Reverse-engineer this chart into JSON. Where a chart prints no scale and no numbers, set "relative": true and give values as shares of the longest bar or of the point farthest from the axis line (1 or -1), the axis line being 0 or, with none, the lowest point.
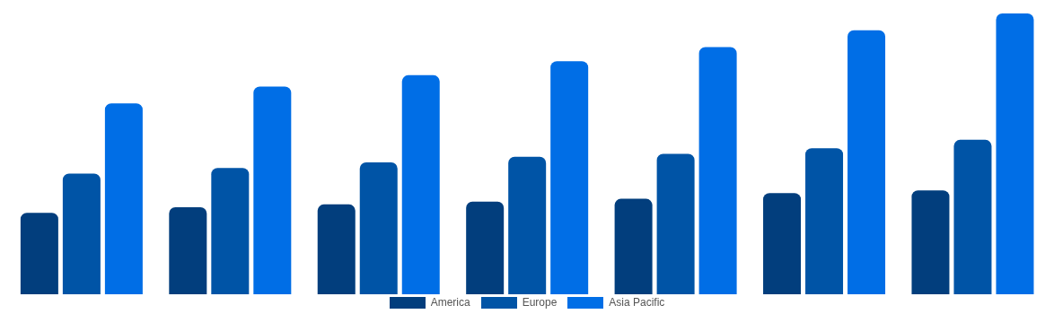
{
  "chart_data": {
    "type": "bar",
    "relative": true,
    "categories": [
      null,
      null,
      null,
      null,
      null,
      null,
      null
    ],
    "series": [
      {
        "name": "America",
        "color": "#023e7d",
        "values": [
          0.29,
          0.31,
          0.32,
          0.33,
          0.34,
          0.36,
          0.37
        ]
      },
      {
        "name": "Europe",
        "color": "#0054a6",
        "values": [
          0.43,
          0.45,
          0.47,
          0.49,
          0.5,
          0.52,
          0.55
        ]
      },
      {
        "name": "Asia Pacific",
        "color": "#006ee6",
        "values": [
          0.68,
          0.74,
          0.78,
          0.83,
          0.88,
          0.94,
          1
        ]
      }
    ],
    "legend": "bottom",
    "grid": false
  }
}
